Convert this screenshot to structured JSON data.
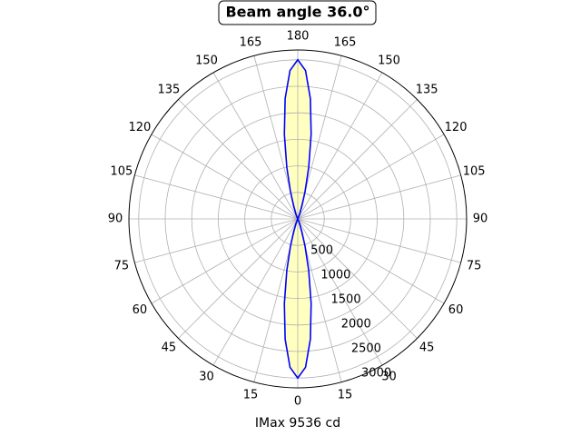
{
  "chart_data": {
    "type": "polar",
    "title": "Beam angle 36.0°",
    "xlabel": "IMax 9536 cd",
    "series": [
      {
        "color": "#0000ff",
        "fill": "#ffffc0",
        "theta": [
          -30,
          -27,
          -24,
          -21,
          -18,
          -15,
          -12,
          -9,
          -6,
          -3,
          0,
          3,
          6,
          9,
          12,
          15,
          18,
          21,
          24,
          27,
          30
        ],
        "values": [
          0,
          9,
          33,
          97,
          244,
          530,
          994,
          1615,
          2279,
          2801,
          3000,
          2801,
          2279,
          1615,
          994,
          530,
          244,
          97,
          33,
          9,
          0
        ]
      },
      {
        "color": "#0000ff",
        "fill": "#ffffc0",
        "theta": [
          150,
          153,
          156,
          159,
          162,
          165,
          168,
          171,
          174,
          177,
          180,
          183,
          186,
          189,
          192,
          195,
          198,
          201,
          204,
          207,
          210
        ],
        "values": [
          0,
          9,
          33,
          97,
          244,
          530,
          994,
          1615,
          2279,
          2801,
          3000,
          2801,
          2279,
          1615,
          994,
          530,
          244,
          97,
          33,
          9,
          0
        ]
      }
    ],
    "rlim": [
      0,
      3185
    ],
    "rticks": [
      500,
      1000,
      1500,
      2000,
      2500,
      3000
    ],
    "thetaticks": [
      0,
      15,
      30,
      45,
      60,
      75,
      90,
      105,
      120,
      135,
      150,
      165,
      180,
      {
        "value": 195,
        "label": "165"
      },
      {
        "value": 210,
        "label": "150"
      },
      {
        "value": 225,
        "label": "135"
      },
      {
        "value": 240,
        "label": "120"
      },
      {
        "value": 255,
        "label": "105"
      },
      {
        "value": 270,
        "label": "90"
      },
      {
        "value": 285,
        "label": "75"
      },
      {
        "value": 300,
        "label": "60"
      },
      {
        "value": 315,
        "label": "45"
      },
      {
        "value": 330,
        "label": "30"
      },
      {
        "value": 345,
        "label": "15"
      }
    ],
    "grid": true
  }
}
